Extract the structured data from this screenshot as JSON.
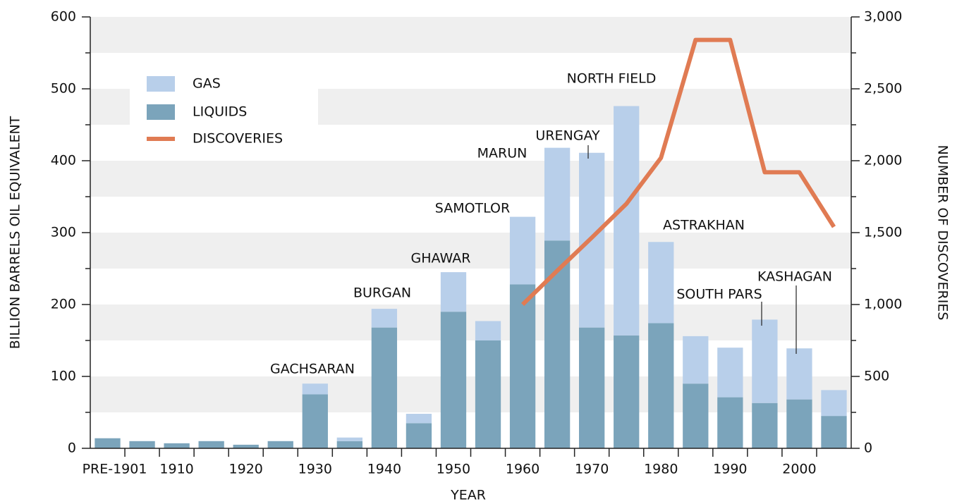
{
  "chart_data": {
    "type": "bar",
    "x_label": "YEAR",
    "y_label": "BILLION BARRELS OIL EQUIVALENT",
    "y2_label": "NUMBER OF DISCOVERIES",
    "categories": [
      "PRE-1901",
      null,
      "1910",
      null,
      "1920",
      null,
      "1930",
      null,
      "1940",
      null,
      "1950",
      null,
      "1960",
      null,
      "1970",
      null,
      "1980",
      null,
      "1990",
      null,
      "2000",
      null
    ],
    "series": [
      {
        "name": "GAS",
        "type": "bar",
        "color": "#b8cfea",
        "values": [
          0,
          0,
          0,
          0,
          0,
          0,
          15,
          5,
          26,
          13,
          55,
          27,
          94,
          129,
          243,
          319,
          113,
          66,
          69,
          116,
          71,
          36
        ]
      },
      {
        "name": "LIQUIDS",
        "type": "bar",
        "color": "#7ba4bb",
        "values": [
          14,
          10,
          7,
          10,
          5,
          10,
          75,
          10,
          168,
          35,
          190,
          150,
          228,
          289,
          168,
          157,
          174,
          90,
          71,
          63,
          68,
          45
        ]
      },
      {
        "name": "DISCOVERIES",
        "type": "line",
        "axis": "y2",
        "color": "#e07b53",
        "values": [
          null,
          null,
          null,
          null,
          null,
          null,
          null,
          null,
          null,
          null,
          null,
          null,
          1000,
          1235,
          1465,
          1700,
          2020,
          2840,
          2840,
          1920,
          1920,
          1540
        ]
      }
    ],
    "ylim": [
      0,
      600
    ],
    "yticks": [
      0,
      100,
      200,
      300,
      400,
      500,
      600
    ],
    "y2lim": [
      0,
      3000
    ],
    "y2ticks": [
      0,
      500,
      {
        "value": 1000,
        "label": "1,000"
      },
      {
        "value": 1500,
        "label": "1,500"
      },
      {
        "value": 2000,
        "label": "2,000"
      },
      {
        "value": 2500,
        "label": "2,500"
      },
      {
        "value": 3000,
        "label": "3,000"
      }
    ],
    "grid": "bands",
    "legend": "upper left",
    "annotations": [
      "GACHSARAN",
      "BURGAN",
      "GHAWAR",
      "SAMOTLOR",
      "MARUN",
      "URENGAY",
      "NORTH FIELD",
      "ASTRAKHAN",
      "SOUTH PARS",
      "KASHAGAN"
    ]
  }
}
